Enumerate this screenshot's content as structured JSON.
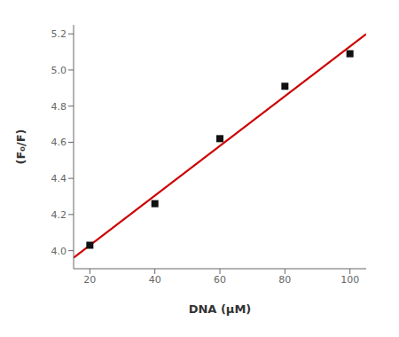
{
  "chart_data": {
    "type": "scatter",
    "x_label": "DNA (μM)",
    "y_label": "(F₀/F)",
    "xlim": [
      15,
      105
    ],
    "ylim": [
      3.9,
      5.25
    ],
    "xticks": [
      20,
      40,
      60,
      80,
      100
    ],
    "yticks": [
      {
        "value": 4.0,
        "label": "4.0"
      },
      4.2,
      4.4,
      4.6,
      4.8,
      {
        "value": 5.0,
        "label": "5.0"
      },
      5.2
    ],
    "grid": false,
    "series": [
      {
        "type": "line",
        "color": "#cc0000",
        "line_style": "solid",
        "x": [
          15,
          105
        ],
        "values": [
          3.96125,
          5.19875
        ]
      },
      {
        "type": "scatter",
        "color": "#111111",
        "marker": "square",
        "x": [
          20,
          40,
          60,
          80,
          100
        ],
        "values": [
          4.03,
          4.26,
          4.62,
          4.91,
          5.09
        ]
      }
    ]
  }
}
